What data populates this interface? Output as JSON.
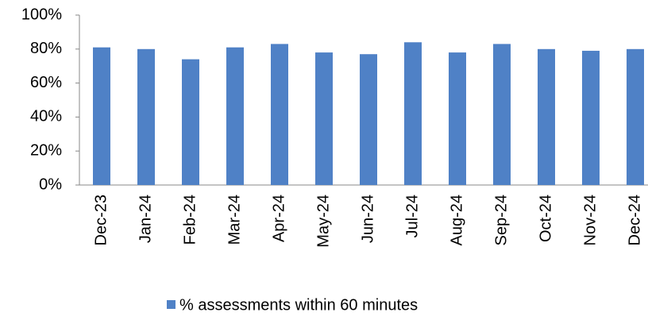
{
  "chart_data": {
    "type": "bar",
    "categories": [
      "Dec-23",
      "Jan-24",
      "Feb-24",
      "Mar-24",
      "Apr-24",
      "May-24",
      "Jun-24",
      "Jul-24",
      "Aug-24",
      "Sep-24",
      "Oct-24",
      "Nov-24",
      "Dec-24"
    ],
    "series": [
      {
        "name": "% assessments within 60 minutes",
        "color": "#4f81c6",
        "values": [
          81,
          80,
          74,
          81,
          83,
          78,
          77,
          84,
          78,
          83,
          80,
          79,
          80
        ]
      }
    ],
    "ylim": [
      0,
      100
    ],
    "yticks": [
      {
        "value": 0,
        "label": "0%"
      },
      {
        "value": 20,
        "label": "20%"
      },
      {
        "value": 40,
        "label": "40%"
      },
      {
        "value": 60,
        "label": "60%"
      },
      {
        "value": 80,
        "label": "80%"
      },
      {
        "value": 100,
        "label": "100%"
      }
    ],
    "grid": false,
    "legend": "bottom"
  }
}
